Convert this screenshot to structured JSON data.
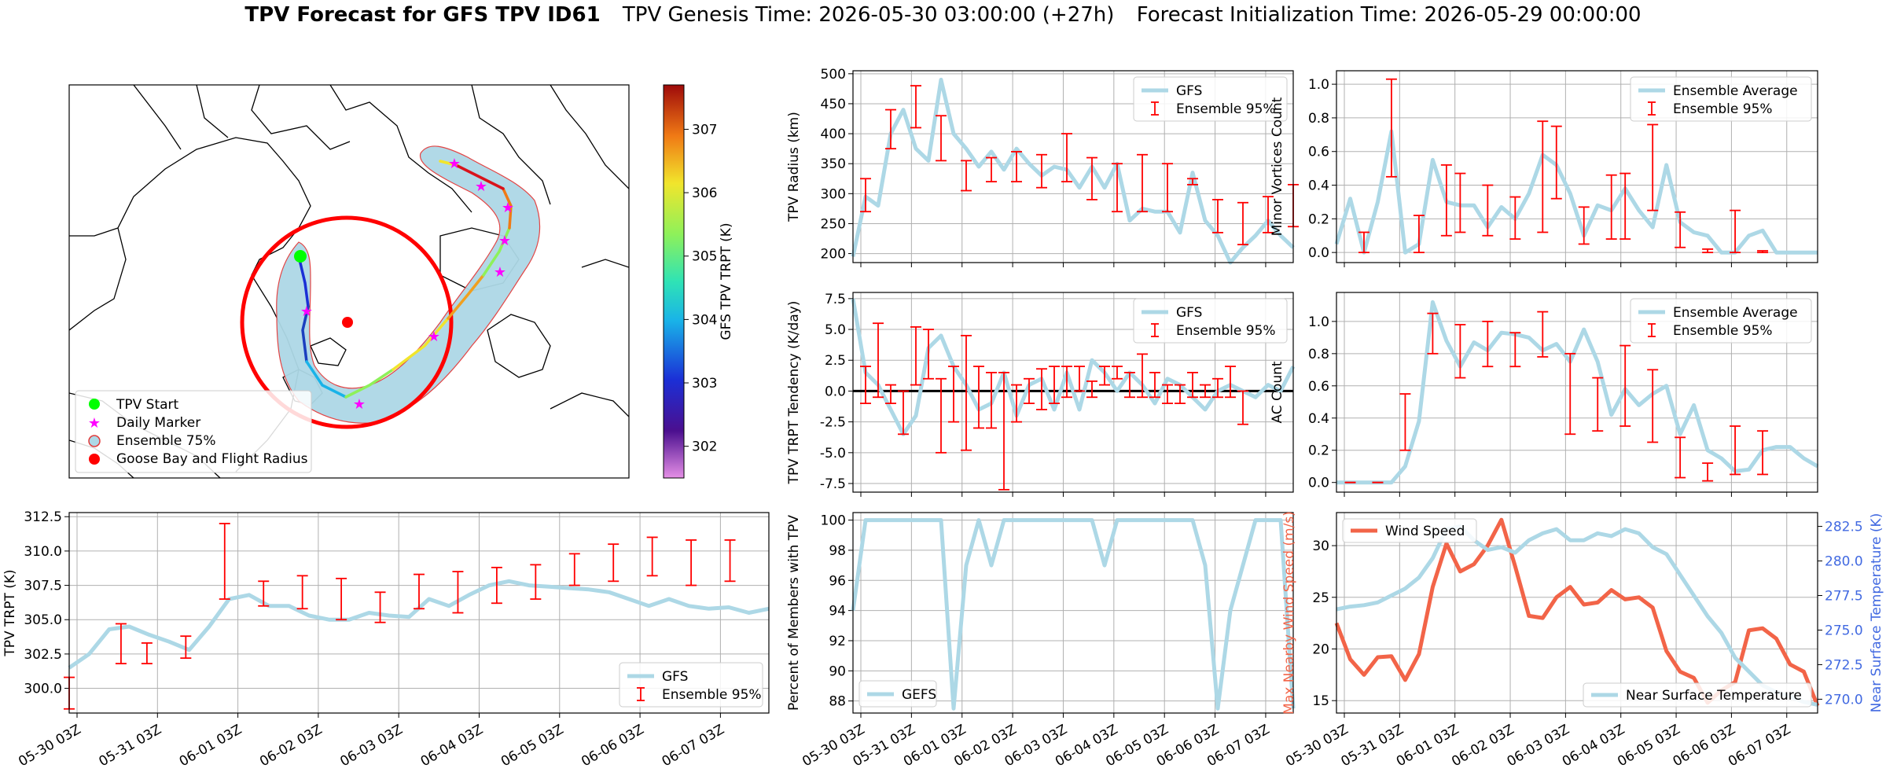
{
  "title": {
    "main": "TPV Forecast for GFS TPV ID61",
    "genesis": "TPV Genesis Time: 2026-05-30 03:00:00 (+27h)",
    "init": "Forecast Initialization Time: 2026-05-29 00:00:00"
  },
  "colors": {
    "light_blue": "#add8e6",
    "red": "#ff0000",
    "tomato": "#f26448",
    "royal_blue": "#4169e1",
    "black": "#000000"
  },
  "time_ticks": [
    "05-30 03Z",
    "05-31 03Z",
    "06-01 03Z",
    "06-02 03Z",
    "06-03 03Z",
    "06-04 03Z",
    "06-05 03Z",
    "06-06 03Z",
    "06-07 03Z"
  ],
  "map": {
    "colorbar_label": "GFS TPV TRPT (K)",
    "colorbar_ticks": [
      "302",
      "303",
      "304",
      "305",
      "306",
      "307"
    ],
    "colorbar_range": [
      301.5,
      307.7
    ],
    "legend": {
      "start": "TPV Start",
      "marker": "Daily Marker",
      "ensemble": "Ensemble 75%",
      "goose": "Goose Bay and Flight Radius"
    }
  },
  "chart_data": [
    {
      "id": "radius",
      "type": "line",
      "ylabel": "TPV Radius (km)",
      "ylim": [
        185,
        505
      ],
      "yticks": [
        200,
        250,
        300,
        350,
        400,
        450,
        500
      ],
      "legend": [
        "GFS",
        "Ensemble 95%"
      ],
      "series": [
        {
          "name": "GFS",
          "values": [
            195,
            295,
            280,
            400,
            440,
            375,
            355,
            490,
            400,
            375,
            345,
            370,
            340,
            375,
            350,
            330,
            345,
            340,
            310,
            345,
            310,
            350,
            255,
            275,
            270,
            270,
            235,
            335,
            255,
            230,
            185,
            210,
            230,
            255,
            230,
            210
          ]
        }
      ],
      "errorbars": [
        [
          1,
          270,
          325
        ],
        [
          3,
          375,
          440
        ],
        [
          5,
          410,
          480
        ],
        [
          7,
          355,
          430
        ],
        [
          9,
          305,
          355
        ],
        [
          11,
          320,
          360
        ],
        [
          13,
          320,
          370
        ],
        [
          15,
          310,
          365
        ],
        [
          17,
          320,
          400
        ],
        [
          19,
          290,
          360
        ],
        [
          21,
          270,
          350
        ],
        [
          23,
          270,
          365
        ],
        [
          25,
          270,
          350
        ],
        [
          27,
          315,
          325
        ],
        [
          29,
          235,
          290
        ],
        [
          31,
          215,
          285
        ],
        [
          33,
          235,
          295
        ],
        [
          35,
          245,
          315
        ]
      ]
    },
    {
      "id": "tendency",
      "type": "line",
      "ylabel": "TPV TRPT Tendency (K/day)",
      "ylim": [
        -8.2,
        8.0
      ],
      "yticks": [
        -7.5,
        -5.0,
        -2.5,
        0.0,
        2.5,
        5.0,
        7.5
      ],
      "legend": [
        "GFS",
        "Ensemble 95%"
      ],
      "series": [
        {
          "name": "GFS",
          "values": [
            7.5,
            1.5,
            0.5,
            -1.5,
            -3.5,
            -2.0,
            3.5,
            4.5,
            2.0,
            0.5,
            -1.5,
            -1.0,
            1.5,
            -2.0,
            0.5,
            1.0,
            -1.5,
            1.5,
            -1.5,
            2.5,
            1.5,
            0.0,
            1.5,
            0.5,
            -1.0,
            1.0,
            0.5,
            -0.5,
            -1.5,
            0.0,
            0.5,
            0.0,
            -0.5,
            0.5,
            0.0,
            2.0
          ]
        }
      ],
      "errorbars": [
        [
          1,
          -1.0,
          2.0
        ],
        [
          2,
          -0.5,
          5.5
        ],
        [
          3,
          -1.0,
          0.5
        ],
        [
          4,
          -3.5,
          0.0
        ],
        [
          5,
          0.5,
          5.2
        ],
        [
          6,
          1.0,
          5.0
        ],
        [
          7,
          -5.0,
          1.0
        ],
        [
          8,
          -2.5,
          2.0
        ],
        [
          9,
          -4.8,
          4.5
        ],
        [
          10,
          -3.0,
          2.0
        ],
        [
          11,
          -3.0,
          1.5
        ],
        [
          12,
          -8.0,
          1.5
        ],
        [
          13,
          -2.5,
          0.5
        ],
        [
          14,
          -1.0,
          1.0
        ],
        [
          15,
          -1.5,
          1.8
        ],
        [
          16,
          -1.0,
          2.0
        ],
        [
          17,
          -0.5,
          2.0
        ],
        [
          18,
          0.0,
          2.0
        ],
        [
          19,
          -0.5,
          0.8
        ],
        [
          20,
          0.5,
          2.0
        ],
        [
          21,
          1.0,
          2.0
        ],
        [
          22,
          -0.5,
          1.5
        ],
        [
          23,
          -0.5,
          3.0
        ],
        [
          24,
          -0.5,
          1.5
        ],
        [
          25,
          -1.0,
          0.5
        ],
        [
          26,
          -1.0,
          0.5
        ],
        [
          27,
          -0.5,
          1.5
        ],
        [
          28,
          -0.5,
          0.5
        ],
        [
          29,
          -0.5,
          1.0
        ],
        [
          30,
          -0.5,
          2.0
        ],
        [
          31,
          -2.7,
          0.0
        ]
      ]
    },
    {
      "id": "members",
      "type": "line",
      "ylabel": "Percent of Members with TPV",
      "ylim": [
        87.2,
        100.5
      ],
      "yticks": [
        88,
        90,
        92,
        94,
        96,
        98,
        100
      ],
      "legend": [
        "GEFS"
      ],
      "series": [
        {
          "name": "GEFS",
          "values": [
            94,
            100,
            100,
            100,
            100,
            100,
            100,
            100,
            87.5,
            97,
            100,
            97,
            100,
            100,
            100,
            100,
            100,
            100,
            100,
            100,
            97,
            100,
            100,
            100,
            100,
            100,
            100,
            100,
            97,
            87.5,
            94,
            97,
            100,
            100,
            100,
            87.5
          ]
        }
      ]
    },
    {
      "id": "minor",
      "type": "line",
      "ylabel": "Minor Vortices Count",
      "ylim": [
        -0.06,
        1.08
      ],
      "yticks": [
        0.0,
        0.2,
        0.4,
        0.6,
        0.8,
        1.0
      ],
      "legend": [
        "Ensemble Average",
        "Ensemble 95%"
      ],
      "series": [
        {
          "name": "Ensemble Average",
          "values": [
            0.05,
            0.32,
            0.0,
            0.3,
            0.72,
            0.0,
            0.05,
            0.55,
            0.3,
            0.28,
            0.28,
            0.15,
            0.27,
            0.2,
            0.35,
            0.58,
            0.52,
            0.35,
            0.1,
            0.28,
            0.25,
            0.38,
            0.25,
            0.15,
            0.52,
            0.18,
            0.12,
            0.1,
            0.0,
            0.0,
            0.1,
            0.13,
            0.0,
            0.0,
            0.0,
            0.0
          ]
        }
      ],
      "errorbars": [
        [
          2,
          0.0,
          0.12
        ],
        [
          4,
          0.45,
          1.03
        ],
        [
          6,
          0.0,
          0.22
        ],
        [
          8,
          0.1,
          0.52
        ],
        [
          9,
          0.12,
          0.47
        ],
        [
          11,
          0.1,
          0.4
        ],
        [
          13,
          0.08,
          0.33
        ],
        [
          15,
          0.12,
          0.78
        ],
        [
          16,
          0.32,
          0.75
        ],
        [
          18,
          0.05,
          0.27
        ],
        [
          20,
          0.08,
          0.46
        ],
        [
          21,
          0.08,
          0.47
        ],
        [
          23,
          0.25,
          0.76
        ],
        [
          25,
          0.03,
          0.24
        ],
        [
          27,
          0.0,
          0.02
        ],
        [
          29,
          0.0,
          0.25
        ],
        [
          31,
          0.0,
          0.01
        ]
      ]
    },
    {
      "id": "ac",
      "type": "line",
      "ylabel": "AC Count",
      "ylim": [
        -0.06,
        1.18
      ],
      "yticks": [
        0.0,
        0.2,
        0.4,
        0.6,
        0.8,
        1.0
      ],
      "legend": [
        "Ensemble Average",
        "Ensemble 95%"
      ],
      "series": [
        {
          "name": "Ensemble Average",
          "values": [
            0.0,
            0.0,
            0.0,
            0.0,
            0.0,
            0.1,
            0.38,
            1.12,
            0.88,
            0.72,
            0.87,
            0.82,
            0.93,
            0.92,
            0.9,
            0.82,
            0.86,
            0.75,
            0.95,
            0.75,
            0.42,
            0.58,
            0.48,
            0.55,
            0.6,
            0.3,
            0.48,
            0.2,
            0.15,
            0.07,
            0.08,
            0.2,
            0.22,
            0.22,
            0.15,
            0.1
          ]
        }
      ],
      "errorbars": [
        [
          1,
          0.0,
          0.0
        ],
        [
          3,
          0.0,
          0.0
        ],
        [
          5,
          0.2,
          0.55
        ],
        [
          7,
          0.8,
          1.05
        ],
        [
          9,
          0.65,
          0.98
        ],
        [
          11,
          0.72,
          1.0
        ],
        [
          13,
          0.72,
          0.93
        ],
        [
          15,
          0.78,
          1.06
        ],
        [
          17,
          0.3,
          0.8
        ],
        [
          19,
          0.32,
          0.65
        ],
        [
          21,
          0.35,
          0.85
        ],
        [
          23,
          0.25,
          0.7
        ],
        [
          25,
          0.03,
          0.28
        ],
        [
          27,
          0.01,
          0.12
        ],
        [
          29,
          0.05,
          0.35
        ],
        [
          31,
          0.05,
          0.32
        ]
      ]
    },
    {
      "id": "trpt",
      "type": "line",
      "ylabel": "TPV TRPT (K)",
      "ylim": [
        298.2,
        312.8
      ],
      "yticks": [
        300.0,
        302.5,
        305.0,
        307.5,
        310.0,
        312.5
      ],
      "legend": [
        "GFS",
        "Ensemble 95%"
      ],
      "series": [
        {
          "name": "GFS",
          "values": [
            301.5,
            302.5,
            304.3,
            304.5,
            303.9,
            303.4,
            302.8,
            304.5,
            306.5,
            306.8,
            306.0,
            306.0,
            305.3,
            305.0,
            305.0,
            305.5,
            305.3,
            305.2,
            306.5,
            306.0,
            306.8,
            307.5,
            307.8,
            307.5,
            307.4,
            307.3,
            307.2,
            307.0,
            306.5,
            306.0,
            306.5,
            306.0,
            305.8,
            305.9,
            305.5,
            305.8
          ]
        }
      ],
      "errorbars": [
        [
          0,
          298.5,
          300.8
        ],
        [
          4,
          301.8,
          304.7
        ],
        [
          6,
          301.8,
          303.3
        ],
        [
          9,
          302.2,
          303.8
        ],
        [
          12,
          306.5,
          312.0
        ],
        [
          15,
          306.0,
          307.8
        ],
        [
          18,
          305.8,
          308.2
        ],
        [
          21,
          305.0,
          308.0
        ],
        [
          24,
          304.8,
          307.0
        ],
        [
          27,
          305.8,
          308.3
        ],
        [
          30,
          305.5,
          308.5
        ],
        [
          33,
          306.2,
          308.8
        ],
        [
          36,
          306.5,
          309.0
        ],
        [
          39,
          307.5,
          309.8
        ],
        [
          42,
          307.8,
          310.5
        ],
        [
          45,
          308.2,
          311.0
        ],
        [
          48,
          307.5,
          310.8
        ],
        [
          51,
          307.8,
          310.8
        ]
      ]
    },
    {
      "id": "wind",
      "type": "line",
      "ylabel": "Max Nearby Wind Speed (m/s)",
      "ylim": [
        13.8,
        33.2
      ],
      "yticks": [
        15,
        20,
        25,
        30
      ],
      "ylabel2": "Near Surface Temperature (K)",
      "ylim2": [
        269.0,
        283.5
      ],
      "yticks2": [
        270.0,
        272.5,
        275.0,
        277.5,
        280.0,
        282.5
      ],
      "legend": [
        "Wind Speed",
        "Near Surface Temperature"
      ],
      "series": [
        {
          "name": "Wind Speed",
          "values": [
            22.5,
            19,
            17.5,
            19.2,
            19.3,
            17.0,
            19.5,
            26.0,
            30.2,
            27.5,
            28.2,
            30.0,
            32.5,
            28.0,
            23.2,
            23.0,
            25.0,
            26.0,
            24.3,
            24.5,
            25.7,
            24.8,
            25.0,
            24.0,
            19.8,
            17.8,
            17.2,
            14.8,
            16.0,
            16.8,
            21.8,
            22.0,
            21.0,
            18.5,
            17.8,
            14.5
          ]
        },
        {
          "name": "Near Surface Temperature",
          "values": [
            276.5,
            276.7,
            276.8,
            277.0,
            277.5,
            278.0,
            278.8,
            280.2,
            282.3,
            282.5,
            281.5,
            280.8,
            281.0,
            280.6,
            281.5,
            282.0,
            282.3,
            281.5,
            281.5,
            282.0,
            281.8,
            282.3,
            282.0,
            281.0,
            280.5,
            279.0,
            277.5,
            276.0,
            274.8,
            273.0,
            272.0,
            271.0,
            270.5,
            270.2,
            269.8,
            269.6
          ]
        }
      ]
    }
  ]
}
